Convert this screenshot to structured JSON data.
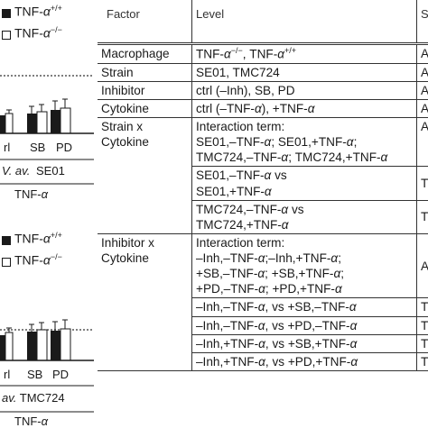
{
  "figure": {
    "panel_top": {
      "legend": [
        {
          "label": "TNF-α+/+",
          "fill": "#1a1a1a"
        },
        {
          "label": "TNF-α−/−",
          "fill": "#ffffff"
        }
      ],
      "tick_labels": [
        "rl",
        "SB",
        "PD"
      ],
      "strain_label": "V. av. SE01",
      "cytokine_label": "TNF-α"
    },
    "panel_bottom": {
      "legend": [
        {
          "label": "TNF-α+/+",
          "fill": "#1a1a1a"
        },
        {
          "label": "TNF-α−/−",
          "fill": "#ffffff"
        }
      ],
      "tick_labels": [
        "rl",
        "SB",
        "PD"
      ],
      "strain_label": "av. TMC724",
      "cytokine_label": "TNF-α"
    }
  },
  "table": {
    "headers": {
      "factor": "Factor",
      "level": "Level",
      "stat": "Sta"
    },
    "rows": [
      {
        "factor": "Macrophage",
        "level": "TNF-α−/−, TNF-α+/+",
        "stat": "AN"
      },
      {
        "factor": "Strain",
        "level": "SE01, TMC724",
        "stat": "AN"
      },
      {
        "factor": "Inhibitor",
        "level": "ctrl (–Inh), SB, PD",
        "stat": "AN"
      },
      {
        "factor": "Cytokine",
        "level": "ctrl (–TNF-α), +TNF-α",
        "stat": "AN"
      },
      {
        "factor": "Strain x Cytokine",
        "level": "Interaction term: SE01,–TNF-α; SE01,+TNF-α; TMC724,–TNF-α; TMC724,+TNF-α",
        "stat": "AN"
      },
      {
        "factor": "",
        "level": "SE01,–TNF-α vs SE01,+TNF-α",
        "stat": "Tu"
      },
      {
        "factor": "",
        "level": "TMC724,–TNF-α vs TMC724,+TNF-α",
        "stat": "Tu"
      },
      {
        "factor": "Inhibitor x Cytokine",
        "level": "Interaction term: –Inh,–TNF-α;–Inh,+TNF-α; +SB,–TNF-α; +SB,+TNF-α; +PD,–TNF-α; +PD,+TNF-α",
        "stat": "AN"
      },
      {
        "factor": "",
        "level": "–Inh,–TNF-α, vs +SB,–TNF-α",
        "stat": "Tu"
      },
      {
        "factor": "",
        "level": "–Inh,–TNF-α, vs +PD,–TNF-α",
        "stat": "Tu"
      },
      {
        "factor": "",
        "level": "–Inh,+TNF-α, vs +SB,+TNF-α",
        "stat": "Tu"
      },
      {
        "factor": "",
        "level": "–Inh,+TNF-α, vs +PD,+TNF-α",
        "stat": "Tu"
      }
    ]
  }
}
